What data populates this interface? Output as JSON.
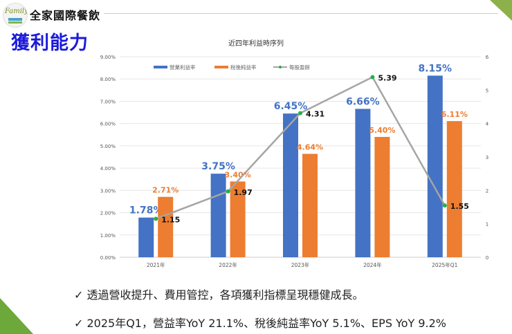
{
  "header": {
    "company": "全家國際餐飲",
    "logo_text": "Family"
  },
  "slide_title": "獲利能力",
  "colors": {
    "op_margin": "#4472c4",
    "net_margin": "#ed7d31",
    "eps": "#a5a5a5",
    "eps_marker": "#22b14c",
    "title": "#1a1adc",
    "accent_green": "#7ab84a"
  },
  "chart_data": {
    "type": "bar+line",
    "title": "近四年利益時序列",
    "categories": [
      "2021年",
      "2022年",
      "2023年",
      "2024年",
      "2025年Q1"
    ],
    "series": [
      {
        "name": "營業利益率",
        "type": "bar",
        "axis": "left",
        "values": [
          1.78,
          3.75,
          6.45,
          6.66,
          8.15
        ],
        "labels": [
          "1.78%",
          "3.75%",
          "6.45%",
          "6.66%",
          "8.15%"
        ]
      },
      {
        "name": "稅後純益率",
        "type": "bar",
        "axis": "left",
        "values": [
          2.71,
          3.4,
          4.64,
          5.4,
          6.11
        ],
        "labels": [
          "2.71%",
          "3.40%",
          "4.64%",
          "5.40%",
          "6.11%"
        ]
      },
      {
        "name": "每股盈餘",
        "type": "line",
        "axis": "right",
        "values": [
          1.15,
          1.97,
          4.31,
          5.39,
          1.55
        ],
        "labels": [
          "1.15",
          "1.97",
          "4.31",
          "5.39",
          "1.55"
        ]
      }
    ],
    "ylim_left": [
      0,
      9
    ],
    "ylim_right": [
      0,
      6
    ],
    "left_ticks": [
      "0.00%",
      "1.00%",
      "2.00%",
      "3.00%",
      "4.00%",
      "5.00%",
      "6.00%",
      "7.00%",
      "8.00%",
      "9.00%"
    ],
    "right_ticks": [
      "0",
      "1",
      "2",
      "3",
      "4",
      "5",
      "6"
    ],
    "grid": true,
    "legend": "top"
  },
  "bullets": [
    "✓ 透過營收提升、費用管控，各項獲利指標呈現穩健成長。",
    "✓ 2025年Q1，營益率YoY 21.1%、稅後純益率YoY 5.1%、EPS YoY 9.2%"
  ]
}
